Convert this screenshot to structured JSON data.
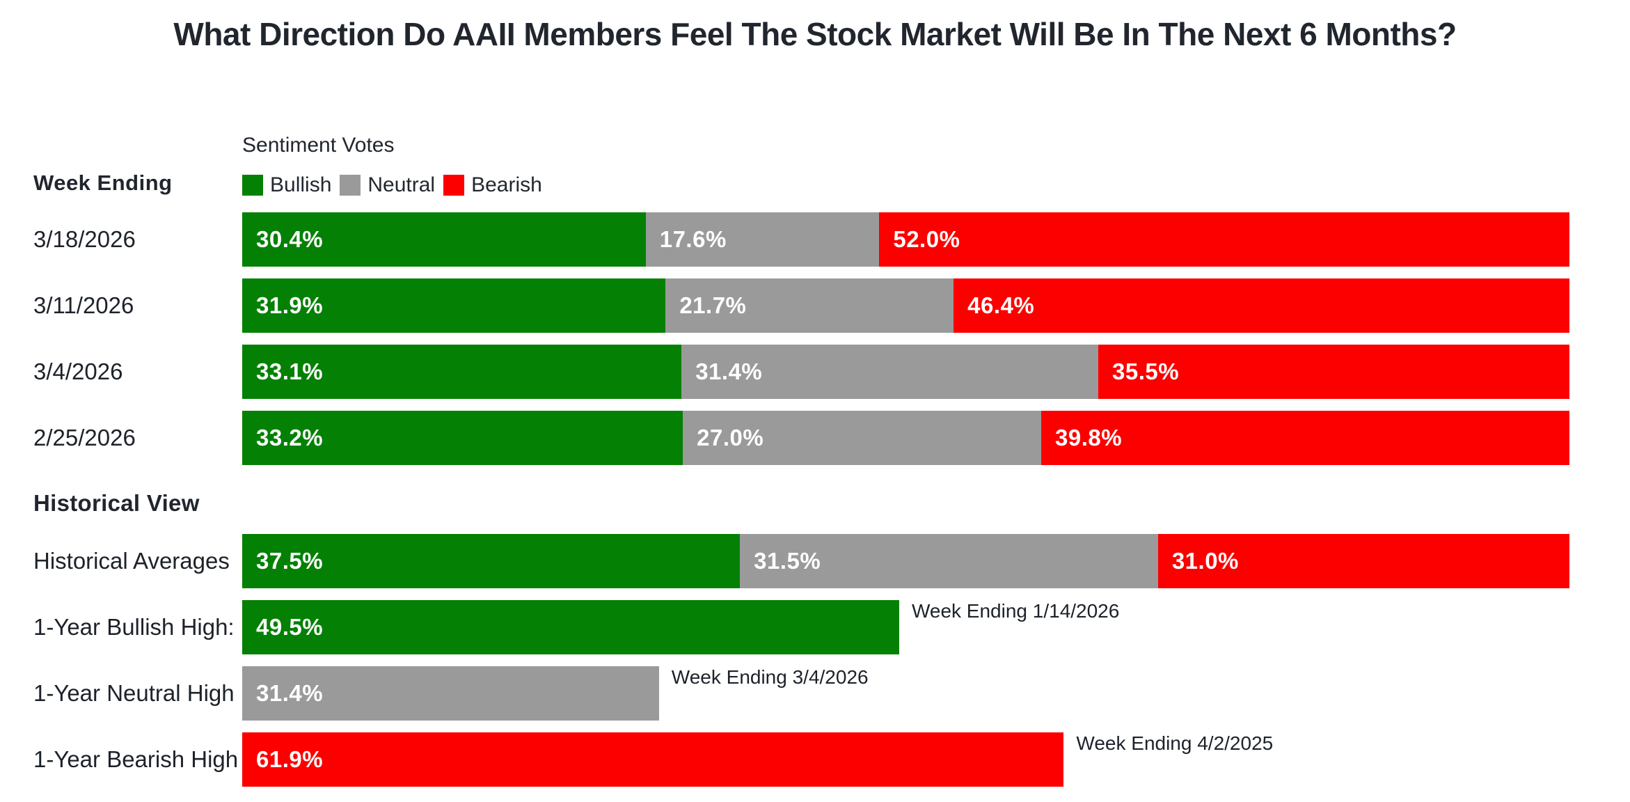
{
  "title": "What Direction Do AAII Members Feel The Stock Market Will Be In The Next 6 Months?",
  "colors": {
    "bullish": "#048104",
    "neutral": "#9a9a9a",
    "bearish": "#fc0000",
    "text_dark": "#21262e",
    "bar_value_text": "#ffffff",
    "background": "#ffffff"
  },
  "legend": {
    "heading": "Sentiment Votes",
    "items": [
      {
        "label": "Bullish",
        "key": "bullish"
      },
      {
        "label": "Neutral",
        "key": "neutral"
      },
      {
        "label": "Bearish",
        "key": "bearish"
      }
    ]
  },
  "left_column_header": "Week Ending",
  "historical_heading": "Historical View",
  "chart_data": {
    "type": "bar",
    "orientation": "horizontal-stacked",
    "title": "What Direction Do AAII Members Feel The Stock Market Will Be In The Next 6 Months?",
    "xlim": [
      0,
      100
    ],
    "value_format": "percent-one-decimal",
    "grid": false,
    "legend_position": "top-left-above-bars",
    "weekly": {
      "categories": [
        "3/18/2026",
        "3/11/2026",
        "3/4/2026",
        "2/25/2026"
      ],
      "series": [
        {
          "key": "bullish",
          "name": "Bullish",
          "values": [
            30.4,
            31.9,
            33.1,
            33.2
          ]
        },
        {
          "key": "neutral",
          "name": "Neutral",
          "values": [
            17.6,
            21.7,
            31.4,
            27.0
          ]
        },
        {
          "key": "bearish",
          "name": "Bearish",
          "values": [
            52.0,
            46.4,
            35.5,
            39.8
          ]
        }
      ]
    },
    "historical": {
      "rows": [
        {
          "label": "Historical Averages",
          "type": "stacked",
          "values": [
            {
              "key": "bullish",
              "value": 37.5
            },
            {
              "key": "neutral",
              "value": 31.5
            },
            {
              "key": "bearish",
              "value": 31.0
            }
          ]
        },
        {
          "label": "1-Year Bullish High:",
          "type": "single",
          "key": "bullish",
          "value": 49.5,
          "annotation": "Week Ending 1/14/2026"
        },
        {
          "label": "1-Year Neutral High",
          "type": "single",
          "key": "neutral",
          "value": 31.4,
          "annotation": "Week Ending 3/4/2026"
        },
        {
          "label": "1-Year Bearish High",
          "type": "single",
          "key": "bearish",
          "value": 61.9,
          "annotation": "Week Ending 4/2/2025"
        }
      ]
    }
  }
}
